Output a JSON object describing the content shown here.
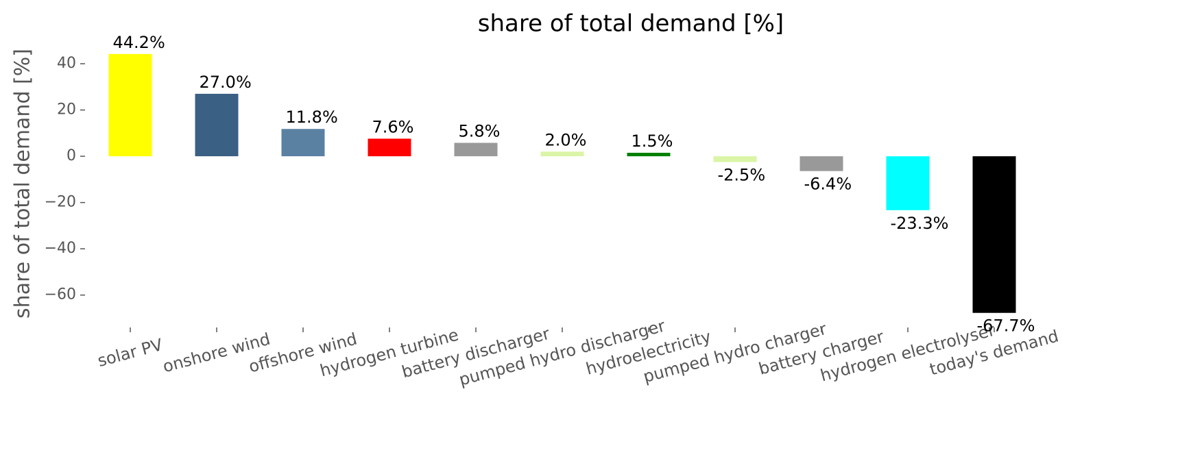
{
  "chart_data": {
    "type": "bar",
    "title": "share of total demand [%]",
    "y_label": "share of total demand [%]",
    "categories": [
      "solar PV",
      "onshore wind",
      "offshore wind",
      "hydrogen turbine",
      "battery discharger",
      "pumped hydro discharger",
      "hydroelectricity",
      "pumped hydro charger",
      "battery charger",
      "hydrogen electrolyser",
      "today's demand"
    ],
    "values": [
      44.2,
      27.0,
      11.8,
      7.6,
      5.8,
      2.0,
      1.5,
      -2.5,
      -6.4,
      -23.3,
      -67.7
    ],
    "value_labels": [
      "44.2%",
      "27.0%",
      "11.8%",
      "7.6%",
      "5.8%",
      "2.0%",
      "1.5%",
      "-2.5%",
      "-6.4%",
      "-23.3%",
      "-67.7%"
    ],
    "colors": [
      "#ffff00",
      "#3a6083",
      "#5b81a2",
      "#ff0000",
      "#999999",
      "#d9f5a5",
      "#008000",
      "#d9f5a5",
      "#999999",
      "#00ffff",
      "#000000"
    ],
    "ylim": [
      -74,
      48
    ],
    "yticks": [
      {
        "value": -60,
        "label": "−60"
      },
      {
        "value": -40,
        "label": "−40"
      },
      {
        "value": -20,
        "label": "−20"
      },
      0,
      20,
      40
    ],
    "grid": false
  }
}
